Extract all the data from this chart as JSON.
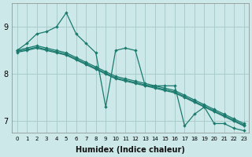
{
  "xlabel": "Humidex (Indice chaleur)",
  "xlim": [
    -0.5,
    23.5
  ],
  "ylim": [
    6.75,
    9.5
  ],
  "yticks": [
    7,
    8,
    9
  ],
  "xticks": [
    0,
    1,
    2,
    3,
    4,
    5,
    6,
    7,
    8,
    9,
    10,
    11,
    12,
    13,
    14,
    15,
    16,
    17,
    18,
    19,
    20,
    21,
    22,
    23
  ],
  "bg_color": "#cce8e8",
  "grid_color": "#aacccc",
  "line_color": "#1a7a6e",
  "lines": [
    [
      8.5,
      8.65,
      8.85,
      8.9,
      9.0,
      9.3,
      8.85,
      8.65,
      8.45,
      7.3,
      8.5,
      8.55,
      8.5,
      7.75,
      7.75,
      7.75,
      7.75,
      6.9,
      7.15,
      7.3,
      6.95,
      6.95,
      6.85,
      6.8
    ],
    [
      8.5,
      8.55,
      8.6,
      8.55,
      8.5,
      8.45,
      8.35,
      8.25,
      8.15,
      8.05,
      7.95,
      7.9,
      7.85,
      7.8,
      7.75,
      7.7,
      7.65,
      7.55,
      7.45,
      7.35,
      7.25,
      7.15,
      7.05,
      6.95
    ],
    [
      8.48,
      8.52,
      8.57,
      8.52,
      8.47,
      8.42,
      8.32,
      8.22,
      8.12,
      8.02,
      7.92,
      7.87,
      7.82,
      7.77,
      7.72,
      7.67,
      7.62,
      7.52,
      7.42,
      7.32,
      7.22,
      7.12,
      7.02,
      6.92
    ],
    [
      8.46,
      8.5,
      8.55,
      8.5,
      8.45,
      8.4,
      8.3,
      8.2,
      8.1,
      8.0,
      7.9,
      7.85,
      7.8,
      7.75,
      7.7,
      7.65,
      7.6,
      7.5,
      7.4,
      7.3,
      7.2,
      7.1,
      7.0,
      6.9
    ]
  ]
}
